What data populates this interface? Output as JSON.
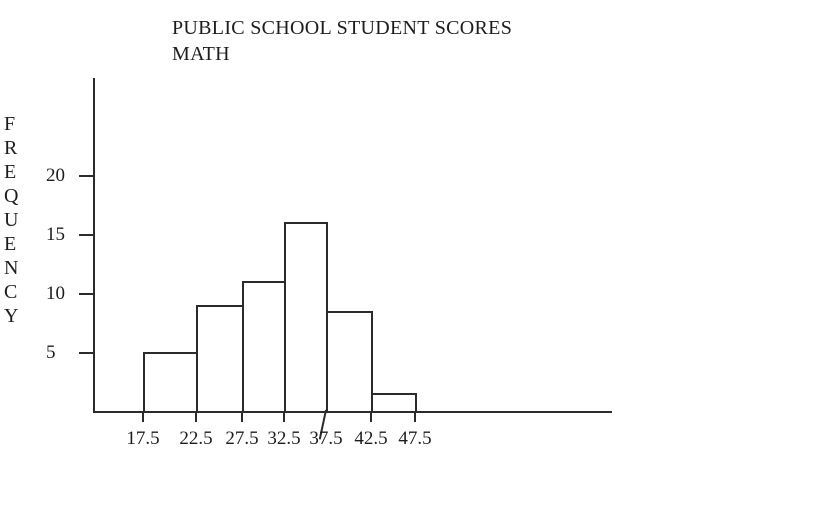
{
  "title": {
    "line1": "PUBLIC SCHOOL STUDENT SCORES",
    "line2": "MATH"
  },
  "y_axis": {
    "label": "FREQUENCY",
    "tick_labels": [
      "20",
      "15",
      "10",
      "5"
    ],
    "tick_values": [
      20,
      15,
      10,
      5
    ]
  },
  "x_axis": {
    "tick_labels": [
      "17.5",
      "22.5",
      "27.5",
      "32.5",
      "37.5",
      "42.5",
      "47.5"
    ]
  },
  "chart_data": {
    "type": "bar",
    "subtype": "histogram",
    "title": "PUBLIC SCHOOL STUDENT SCORES MATH",
    "xlabel": "",
    "ylabel": "FREQUENCY",
    "bin_edges": [
      17.5,
      22.5,
      27.5,
      32.5,
      37.5,
      42.5,
      47.5
    ],
    "categories": [
      "17.5-22.5",
      "22.5-27.5",
      "27.5-32.5",
      "32.5-37.5",
      "37.5-42.5",
      "42.5-47.5"
    ],
    "values": [
      5,
      9,
      11,
      16,
      8.5,
      1.5
    ],
    "yticks": [
      20,
      15,
      10,
      5
    ],
    "ylim": [
      0,
      28
    ],
    "grid": false,
    "legend": false,
    "bar_fill": "#ffffff",
    "bar_border": "#2b2b2b"
  },
  "colors": {
    "line": "#2b2b2b",
    "text": "#1c1c1c",
    "background": "#ffffff"
  }
}
